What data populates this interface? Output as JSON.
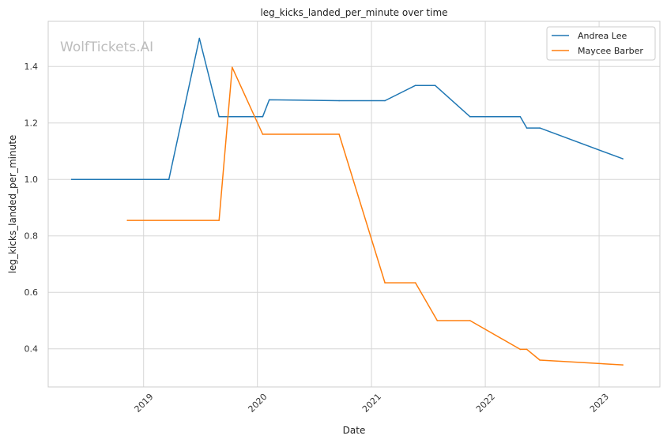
{
  "chart_data": {
    "type": "line",
    "title": "leg_kicks_landed_per_minute over time",
    "xlabel": "Date",
    "ylabel": "leg_kicks_landed_per_minute",
    "watermark": "WolfTickets.AI",
    "xlim": [
      "2018-03-01",
      "2023-07-15"
    ],
    "ylim": [
      0.265,
      1.56
    ],
    "x_ticks": [
      {
        "value": "2019-01-01",
        "label": "2019"
      },
      {
        "value": "2020-01-01",
        "label": "2020"
      },
      {
        "value": "2021-01-01",
        "label": "2021"
      },
      {
        "value": "2022-01-01",
        "label": "2022"
      },
      {
        "value": "2023-01-01",
        "label": "2023"
      }
    ],
    "y_ticks": [
      {
        "value": 0.4,
        "label": "0.4"
      },
      {
        "value": 0.6,
        "label": "0.6"
      },
      {
        "value": 0.8,
        "label": "0.8"
      },
      {
        "value": 1.0,
        "label": "1.0"
      },
      {
        "value": 1.2,
        "label": "1.2"
      },
      {
        "value": 1.4,
        "label": "1.4"
      }
    ],
    "grid": true,
    "legend_position": "top-right",
    "series": [
      {
        "name": "Andrea Lee",
        "color": "#1f77b4",
        "points": [
          {
            "x": "2018-05-15",
            "y": 1.0
          },
          {
            "x": "2019-03-23",
            "y": 1.0
          },
          {
            "x": "2019-06-29",
            "y": 1.5
          },
          {
            "x": "2019-08-31",
            "y": 1.222
          },
          {
            "x": "2020-01-18",
            "y": 1.222
          },
          {
            "x": "2020-02-08",
            "y": 1.282
          },
          {
            "x": "2020-09-19",
            "y": 1.279
          },
          {
            "x": "2021-02-13",
            "y": 1.279
          },
          {
            "x": "2021-05-22",
            "y": 1.333
          },
          {
            "x": "2021-07-24",
            "y": 1.333
          },
          {
            "x": "2021-11-13",
            "y": 1.222
          },
          {
            "x": "2022-04-23",
            "y": 1.222
          },
          {
            "x": "2022-05-14",
            "y": 1.182
          },
          {
            "x": "2022-06-25",
            "y": 1.182
          },
          {
            "x": "2023-03-18",
            "y": 1.073
          }
        ]
      },
      {
        "name": "Maycee Barber",
        "color": "#ff7f0e",
        "points": [
          {
            "x": "2018-11-10",
            "y": 0.855
          },
          {
            "x": "2019-08-31",
            "y": 0.855
          },
          {
            "x": "2019-10-12",
            "y": 1.397
          },
          {
            "x": "2020-01-18",
            "y": 1.16
          },
          {
            "x": "2020-09-19",
            "y": 1.16
          },
          {
            "x": "2021-02-13",
            "y": 0.634
          },
          {
            "x": "2021-05-22",
            "y": 0.634
          },
          {
            "x": "2021-07-31",
            "y": 0.5
          },
          {
            "x": "2021-11-13",
            "y": 0.5
          },
          {
            "x": "2022-04-23",
            "y": 0.398
          },
          {
            "x": "2022-05-14",
            "y": 0.398
          },
          {
            "x": "2022-06-25",
            "y": 0.36
          },
          {
            "x": "2023-03-18",
            "y": 0.343
          }
        ]
      }
    ]
  }
}
